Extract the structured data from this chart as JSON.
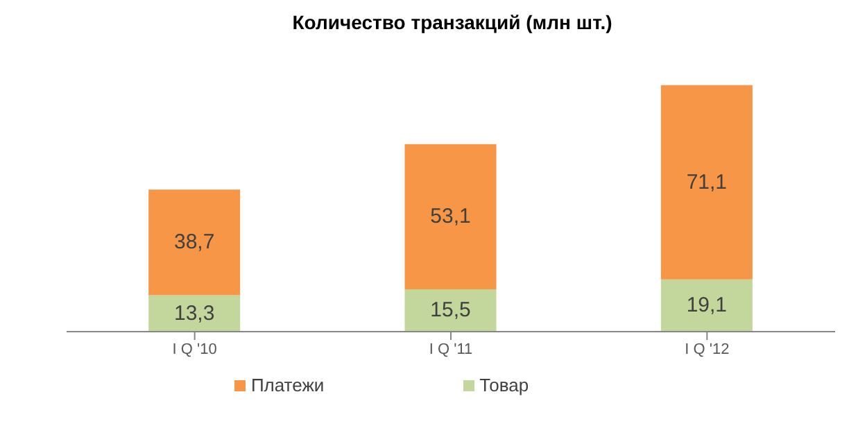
{
  "chart_data": {
    "type": "bar",
    "title": "Количество транзакций (млн шт.)",
    "categories": [
      "I Q '10",
      "I Q '11",
      "I Q '12"
    ],
    "stacked": true,
    "legend": "bottom",
    "grid": false,
    "tick_labels": "x",
    "series": [
      {
        "name": "Товар",
        "color": "#c3d69b",
        "values": [
          13.3,
          15.5,
          19.1
        ],
        "value_labels": [
          "13,3",
          "15,5",
          "19,1"
        ]
      },
      {
        "name": "Платежи",
        "color": "#f79646",
        "values": [
          38.7,
          53.1,
          71.1
        ],
        "value_labels": [
          "38,7",
          "53,1",
          "71,1"
        ]
      }
    ]
  }
}
